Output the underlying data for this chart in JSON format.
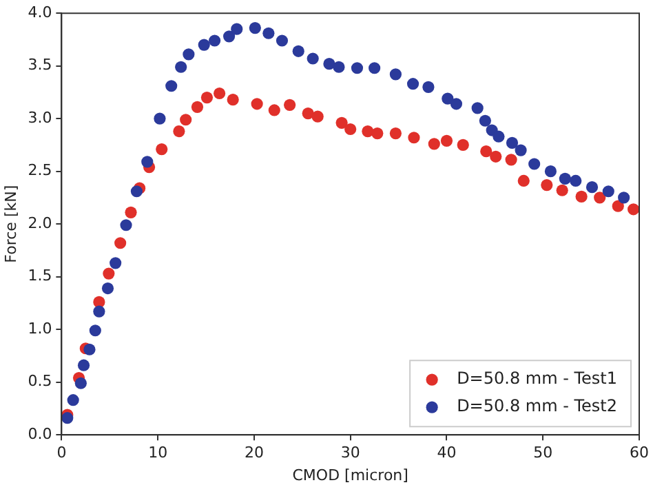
{
  "chart_data": {
    "type": "scatter",
    "xlabel": "CMOD [micron]",
    "ylabel": "Force [kN]",
    "xlim": [
      0,
      60
    ],
    "xticks": [
      0,
      10,
      20,
      30,
      40,
      50,
      60
    ],
    "ylim": [
      0,
      4
    ],
    "yticks": [
      {
        "value": 0,
        "label": "0.0"
      },
      {
        "value": 0.5,
        "label": "0.5"
      },
      {
        "value": 1,
        "label": "1.0"
      },
      {
        "value": 1.5,
        "label": "1.5"
      },
      {
        "value": 2,
        "label": "2.0"
      },
      {
        "value": 2.5,
        "label": "2.5"
      },
      {
        "value": 3,
        "label": "3.0"
      },
      {
        "value": 3.5,
        "label": "3.5"
      },
      {
        "value": 4,
        "label": "4.0"
      }
    ],
    "grid": false,
    "legend": "bottom right",
    "marker": "circle",
    "series": [
      {
        "name": "D=50.8 mm - Test1",
        "color": "#e0302a",
        "x": [
          0.6,
          1.8,
          2.5,
          3.9,
          4.9,
          6.1,
          7.2,
          8.1,
          9.1,
          10.4,
          12.2,
          12.9,
          14.1,
          15.1,
          16.4,
          17.8,
          20.3,
          22.1,
          23.7,
          25.6,
          26.6,
          29.1,
          30.0,
          31.8,
          32.8,
          34.7,
          36.6,
          38.7,
          40.0,
          41.7,
          44.1,
          45.1,
          46.7,
          48.0,
          50.4,
          52.0,
          54.0,
          55.9,
          57.8,
          59.4
        ],
        "values": [
          0.19,
          0.54,
          0.82,
          1.26,
          1.53,
          1.82,
          2.11,
          2.34,
          2.54,
          2.71,
          2.88,
          2.99,
          3.11,
          3.2,
          3.24,
          3.18,
          3.14,
          3.08,
          3.13,
          3.05,
          3.02,
          2.96,
          2.9,
          2.88,
          2.86,
          2.86,
          2.82,
          2.76,
          2.79,
          2.75,
          2.69,
          2.64,
          2.61,
          2.41,
          2.37,
          2.32,
          2.26,
          2.25,
          2.17,
          2.14
        ]
      },
      {
        "name": "D=50.8 mm - Test2",
        "color": "#2b3a9b",
        "x": [
          0.6,
          1.2,
          2.0,
          2.3,
          2.9,
          3.5,
          3.9,
          4.8,
          5.6,
          6.7,
          7.8,
          8.9,
          10.2,
          11.4,
          12.4,
          13.2,
          14.8,
          15.9,
          17.4,
          18.2,
          20.1,
          21.5,
          22.9,
          24.6,
          26.1,
          27.8,
          28.8,
          30.7,
          32.5,
          34.7,
          36.5,
          38.1,
          40.1,
          41.0,
          43.2,
          44.0,
          44.7,
          45.4,
          46.8,
          47.7,
          49.1,
          50.8,
          52.3,
          53.4,
          55.1,
          56.8,
          58.4
        ],
        "values": [
          0.16,
          0.33,
          0.49,
          0.66,
          0.81,
          0.99,
          1.17,
          1.39,
          1.63,
          1.99,
          2.31,
          2.59,
          3.0,
          3.31,
          3.49,
          3.61,
          3.7,
          3.74,
          3.78,
          3.85,
          3.86,
          3.81,
          3.74,
          3.64,
          3.57,
          3.52,
          3.49,
          3.48,
          3.48,
          3.42,
          3.33,
          3.3,
          3.19,
          3.14,
          3.1,
          2.98,
          2.89,
          2.83,
          2.77,
          2.7,
          2.57,
          2.5,
          2.43,
          2.41,
          2.35,
          2.31,
          2.25
        ]
      }
    ]
  }
}
